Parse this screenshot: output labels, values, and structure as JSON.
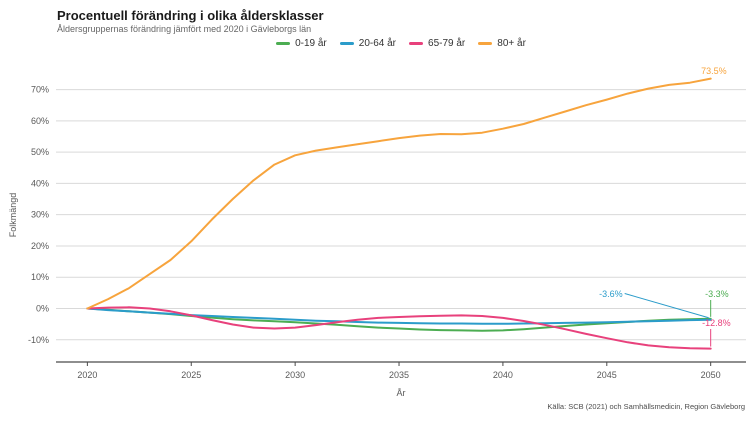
{
  "chart_data": {
    "type": "line",
    "title": "Procentuell förändring i olika åldersklasser",
    "subtitle": "Åldersgruppernas förändring jämfört med 2020 i Gävleborgs län",
    "xlabel": "År",
    "ylabel": "Folkmängd",
    "source": "Källa: SCB (2021) och Samhällsmedicin, Region Gävleborg",
    "legend_position": "top-center",
    "grid": "horizontal",
    "x": [
      2020,
      2021,
      2022,
      2023,
      2024,
      2025,
      2026,
      2027,
      2028,
      2029,
      2030,
      2031,
      2032,
      2033,
      2034,
      2035,
      2036,
      2037,
      2038,
      2039,
      2040,
      2041,
      2042,
      2043,
      2044,
      2045,
      2046,
      2047,
      2048,
      2049,
      2050
    ],
    "xticks": [
      2020,
      2025,
      2030,
      2035,
      2040,
      2045,
      2050
    ],
    "ytick_values": [
      -10,
      0,
      10,
      20,
      30,
      40,
      50,
      60,
      70
    ],
    "ytick_labels": [
      "-10%",
      "0%",
      "10%",
      "20%",
      "30%",
      "40%",
      "50%",
      "60%",
      "70%"
    ],
    "xlim": [
      2018.49,
      2051.7
    ],
    "ylim": [
      -17.1,
      76.9
    ],
    "colors": {
      "axis": "#4a4a4a",
      "gridline": "#d9d9d9",
      "tick_text": "#595959"
    },
    "series": [
      {
        "name": "0-19 år",
        "color": "#4cad52",
        "end_label": "-3.3%",
        "values": [
          0,
          -0.4,
          -0.9,
          -1.3,
          -1.8,
          -2.4,
          -2.9,
          -3.4,
          -3.8,
          -4.1,
          -4.4,
          -4.8,
          -5.2,
          -5.7,
          -6.1,
          -6.4,
          -6.7,
          -6.9,
          -7,
          -7.1,
          -7,
          -6.6,
          -6.1,
          -5.6,
          -5.1,
          -4.7,
          -4.3,
          -3.9,
          -3.6,
          -3.4,
          -3.3
        ]
      },
      {
        "name": "20-64 år",
        "color": "#2b9cca",
        "end_label": "-3.6%",
        "values": [
          0,
          -0.5,
          -0.9,
          -1.3,
          -1.7,
          -2.1,
          -2.4,
          -2.7,
          -3,
          -3.3,
          -3.6,
          -3.9,
          -4.1,
          -4.3,
          -4.5,
          -4.6,
          -4.7,
          -4.8,
          -4.8,
          -4.9,
          -4.9,
          -4.8,
          -4.7,
          -4.6,
          -4.5,
          -4.4,
          -4.2,
          -4.1,
          -3.9,
          -3.7,
          -3.6
        ]
      },
      {
        "name": "65-79 år",
        "color": "#e8417c",
        "end_label": "-12.8%",
        "values": [
          0,
          0.3,
          0.4,
          0,
          -0.9,
          -2.2,
          -3.7,
          -5.1,
          -6.1,
          -6.4,
          -6.1,
          -5.3,
          -4.4,
          -3.6,
          -3,
          -2.7,
          -2.5,
          -2.3,
          -2.2,
          -2.4,
          -3,
          -4,
          -5.2,
          -6.6,
          -8.1,
          -9.5,
          -10.8,
          -11.8,
          -12.4,
          -12.7,
          -12.8
        ]
      },
      {
        "name": "80+ år",
        "color": "#f7a43d",
        "end_label": "73.5%",
        "values": [
          0,
          3,
          6.5,
          11,
          15.5,
          21.5,
          28.5,
          35,
          41,
          46,
          49,
          50.5,
          51.5,
          52.5,
          53.5,
          54.5,
          55.3,
          55.8,
          55.7,
          56.2,
          57.5,
          59,
          61,
          63,
          65,
          66.8,
          68.7,
          70.3,
          71.5,
          72.2,
          73.5
        ]
      }
    ]
  }
}
